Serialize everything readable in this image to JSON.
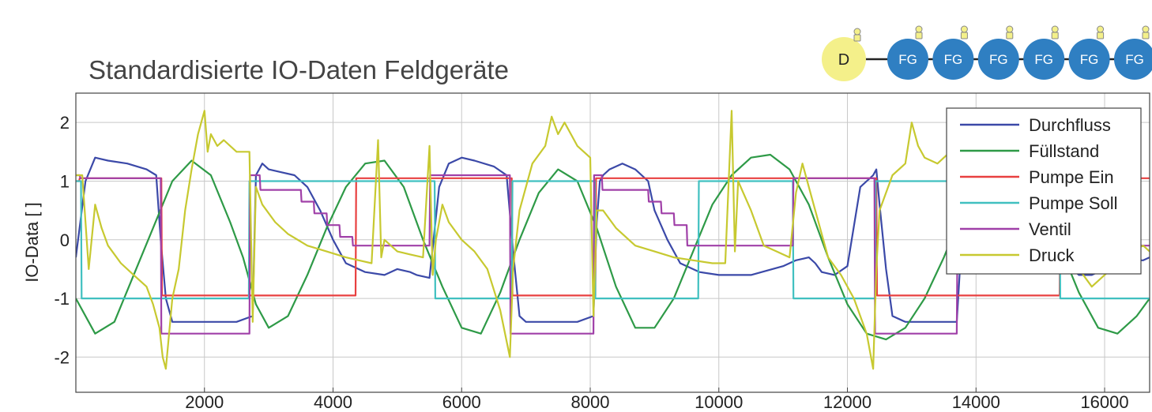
{
  "chart_data": {
    "type": "line",
    "title": "Standardisierte IO-Daten Feldgeräte",
    "ylabel": "IO-Data [ ]",
    "xlabel": "",
    "xlim": [
      0,
      16700
    ],
    "ylim": [
      -2.6,
      2.5
    ],
    "x_ticks": [
      2000,
      4000,
      6000,
      8000,
      10000,
      12000,
      14000,
      16000
    ],
    "y_ticks": [
      2,
      1,
      0,
      -1,
      -2
    ],
    "grid": true,
    "legend_position": "top-right",
    "series": [
      {
        "name": "Durchfluss",
        "color": "#3b49a8",
        "x": [
          0,
          150,
          300,
          500,
          800,
          1100,
          1250,
          1320,
          1400,
          1500,
          1600,
          1700,
          1750,
          1900,
          2500,
          2750,
          2800,
          2900,
          3000,
          3200,
          3400,
          3600,
          3800,
          4000,
          4200,
          4500,
          4800,
          5000,
          5200,
          5300,
          5500,
          5650,
          5800,
          6000,
          6200,
          6500,
          6700,
          6800,
          6900,
          7000,
          7100,
          7200,
          7400,
          7500,
          7800,
          8050,
          8100,
          8150,
          8200,
          8300,
          8500,
          8700,
          8900,
          9000,
          9200,
          9400,
          9700,
          10000,
          10500,
          11000,
          11200,
          11400,
          11500,
          11600,
          11800,
          12000,
          12200,
          12400,
          12450,
          12500,
          12600,
          12700,
          12900,
          13200,
          13500,
          13700,
          13750,
          13800,
          13900,
          14000,
          14200,
          14500,
          14800,
          15000,
          15200,
          15300,
          15400,
          15600,
          15800,
          16000,
          16200,
          16400,
          16600,
          16700
        ],
        "y": [
          -0.3,
          1.0,
          1.4,
          1.35,
          1.3,
          1.2,
          1.1,
          0.0,
          -1.0,
          -1.4,
          -1.4,
          -1.4,
          -1.4,
          -1.4,
          -1.4,
          -1.3,
          1.1,
          1.3,
          1.2,
          1.15,
          1.1,
          0.9,
          0.5,
          0.0,
          -0.4,
          -0.55,
          -0.6,
          -0.5,
          -0.55,
          -0.6,
          -0.65,
          0.9,
          1.3,
          1.4,
          1.35,
          1.25,
          1.1,
          -0.2,
          -1.3,
          -1.4,
          -1.4,
          -1.4,
          -1.4,
          -1.4,
          -1.4,
          -1.3,
          0.3,
          1.0,
          1.1,
          1.2,
          1.3,
          1.2,
          1.0,
          0.5,
          0.0,
          -0.4,
          -0.55,
          -0.6,
          -0.6,
          -0.45,
          -0.35,
          -0.3,
          -0.4,
          -0.55,
          -0.6,
          -0.45,
          0.9,
          1.1,
          1.2,
          0.6,
          -0.5,
          -1.3,
          -1.4,
          -1.4,
          -1.4,
          -1.4,
          -0.5,
          1.0,
          1.2,
          1.3,
          1.35,
          1.3,
          1.2,
          1.1,
          0.9,
          0.3,
          -0.4,
          -0.6,
          -0.6,
          -0.5,
          -0.4,
          -0.35,
          -0.35,
          -0.3
        ]
      },
      {
        "name": "Füllstand",
        "color": "#2e9a47",
        "x": [
          0,
          300,
          600,
          900,
          1200,
          1500,
          1800,
          2100,
          2400,
          2600,
          2800,
          3000,
          3300,
          3600,
          3900,
          4200,
          4500,
          4800,
          5100,
          5400,
          5700,
          6000,
          6300,
          6600,
          6900,
          7200,
          7500,
          7800,
          8100,
          8400,
          8700,
          9000,
          9300,
          9600,
          9900,
          10200,
          10500,
          10800,
          11100,
          11400,
          11700,
          12000,
          12300,
          12600,
          12900,
          13200,
          13500,
          13800,
          14100,
          14400,
          14700,
          15000,
          15300,
          15600,
          15900,
          16200,
          16500,
          16700
        ],
        "y": [
          -1.0,
          -1.6,
          -1.4,
          -0.6,
          0.2,
          1.0,
          1.35,
          1.1,
          0.3,
          -0.3,
          -1.1,
          -1.5,
          -1.3,
          -0.6,
          0.2,
          0.9,
          1.3,
          1.35,
          0.9,
          0.0,
          -0.8,
          -1.5,
          -1.6,
          -0.9,
          0.0,
          0.8,
          1.2,
          1.0,
          0.2,
          -0.8,
          -1.5,
          -1.5,
          -1.0,
          -0.2,
          0.6,
          1.1,
          1.4,
          1.45,
          1.2,
          0.6,
          -0.3,
          -1.1,
          -1.6,
          -1.7,
          -1.5,
          -1.0,
          -0.3,
          0.5,
          1.1,
          1.3,
          1.2,
          0.7,
          -0.1,
          -0.9,
          -1.5,
          -1.6,
          -1.3,
          -1.0
        ]
      },
      {
        "name": "Pumpe Ein",
        "color": "#e84040",
        "x": [
          0,
          50,
          60,
          1330,
          1340,
          2700,
          2710,
          4350,
          4360,
          6780,
          6790,
          8080,
          8090,
          9700,
          9710,
          12450,
          12460,
          15300,
          15310,
          16700
        ],
        "y": [
          1.0,
          1.0,
          1.05,
          1.05,
          -0.95,
          -0.95,
          -0.95,
          -0.95,
          1.05,
          1.05,
          -0.95,
          -0.95,
          1.05,
          1.05,
          1.05,
          1.05,
          -0.95,
          -0.95,
          1.05,
          1.05
        ]
      },
      {
        "name": "Pumpe Soll",
        "color": "#40c0c0",
        "x": [
          0,
          80,
          90,
          1320,
          1330,
          2690,
          2700,
          4340,
          4350,
          5580,
          5590,
          6780,
          6790,
          8070,
          8080,
          9680,
          9690,
          11150,
          11160,
          12430,
          12440,
          15300,
          15310,
          16700
        ],
        "y": [
          1.0,
          1.0,
          -1.0,
          -1.0,
          -1.0,
          -1.0,
          1.0,
          1.0,
          1.0,
          1.0,
          -1.0,
          -1.0,
          1.0,
          1.0,
          -1.0,
          -1.0,
          1.0,
          1.0,
          -1.0,
          -1.0,
          1.0,
          1.0,
          -1.0,
          -1.0
        ]
      },
      {
        "name": "Ventil",
        "color": "#a040a8",
        "x": [
          0,
          60,
          70,
          1320,
          1330,
          2700,
          2710,
          2860,
          2870,
          3500,
          3510,
          3700,
          3710,
          3900,
          3910,
          4100,
          4110,
          4300,
          4310,
          5500,
          5510,
          5600,
          5610,
          6750,
          6760,
          8050,
          8060,
          8180,
          8190,
          8900,
          8910,
          9100,
          9110,
          9300,
          9310,
          9500,
          9510,
          11150,
          11160,
          12420,
          12430,
          13700,
          13710,
          16700
        ],
        "y": [
          1.1,
          1.1,
          1.05,
          1.05,
          -1.6,
          -1.6,
          1.1,
          1.1,
          0.85,
          0.85,
          0.65,
          0.65,
          0.45,
          0.45,
          0.25,
          0.25,
          0.05,
          0.05,
          -0.1,
          -0.1,
          1.1,
          1.1,
          1.1,
          1.1,
          -1.6,
          -1.6,
          1.1,
          1.1,
          0.85,
          0.85,
          0.65,
          0.65,
          0.45,
          0.45,
          0.25,
          0.25,
          -0.1,
          -0.1,
          1.05,
          1.05,
          -1.6,
          -1.6,
          -0.1,
          -0.1
        ]
      },
      {
        "name": "Druck",
        "color": "#c7c930",
        "x": [
          0,
          100,
          200,
          300,
          400,
          500,
          700,
          900,
          1100,
          1200,
          1300,
          1350,
          1400,
          1500,
          1600,
          1700,
          1800,
          1900,
          2000,
          2050,
          2100,
          2200,
          2300,
          2500,
          2700,
          2750,
          2800,
          2900,
          3100,
          3300,
          3600,
          3900,
          4200,
          4400,
          4600,
          4700,
          4750,
          4800,
          5000,
          5200,
          5400,
          5500,
          5550,
          5600,
          5700,
          5800,
          6000,
          6200,
          6400,
          6600,
          6750,
          6800,
          6900,
          7100,
          7300,
          7400,
          7500,
          7600,
          7800,
          8000,
          8050,
          8100,
          8200,
          8400,
          8700,
          9000,
          9300,
          9600,
          9900,
          10100,
          10200,
          10250,
          10300,
          10500,
          10700,
          10900,
          11100,
          11200,
          11300,
          11500,
          11700,
          11900,
          12100,
          12300,
          12400,
          12450,
          12500,
          12700,
          12900,
          13000,
          13100,
          13200,
          13400,
          13600,
          13700,
          13800,
          14000,
          14200,
          14400,
          14600,
          14800,
          15000,
          15200,
          15400,
          15600,
          15800,
          16000,
          16200,
          16400,
          16600,
          16700
        ],
        "y": [
          1.1,
          1.1,
          -0.5,
          0.6,
          0.2,
          -0.1,
          -0.4,
          -0.6,
          -0.8,
          -1.1,
          -1.5,
          -2.0,
          -2.2,
          -1.0,
          -0.5,
          0.5,
          1.2,
          1.8,
          2.2,
          1.5,
          1.8,
          1.6,
          1.7,
          1.5,
          1.5,
          -1.4,
          0.9,
          0.6,
          0.3,
          0.1,
          -0.1,
          -0.2,
          -0.3,
          -0.35,
          -0.4,
          1.7,
          -0.3,
          0.0,
          -0.2,
          -0.25,
          -0.3,
          1.6,
          -0.6,
          0.0,
          0.6,
          0.3,
          0.0,
          -0.2,
          -0.5,
          -1.2,
          -2.0,
          -0.5,
          0.5,
          1.3,
          1.6,
          2.1,
          1.8,
          2.0,
          1.6,
          1.4,
          -1.3,
          0.5,
          0.5,
          0.2,
          -0.1,
          -0.2,
          -0.3,
          -0.35,
          -0.4,
          -0.4,
          2.2,
          -0.2,
          1.0,
          0.5,
          -0.1,
          -0.2,
          -0.3,
          0.8,
          1.3,
          0.5,
          -0.3,
          -0.6,
          -1.0,
          -1.6,
          -2.2,
          -0.5,
          0.5,
          1.1,
          1.3,
          2.0,
          1.6,
          1.4,
          1.3,
          1.5,
          1.4,
          1.5,
          1.4,
          0.8,
          0.4,
          0.2,
          0.0,
          -0.1,
          -0.3,
          -0.3,
          -0.5,
          -0.8,
          -0.6,
          -0.4,
          -0.2,
          -0.1,
          -0.2
        ]
      }
    ]
  },
  "network": {
    "master_label": "D",
    "device_labels": [
      "FG",
      "FG",
      "FG",
      "FG",
      "FG",
      "FG"
    ]
  },
  "colors": {
    "master_fill": "#f4f08a",
    "device_fill": "#2f7fc2",
    "grid": "#c8c8c8",
    "axes": "#444444"
  }
}
